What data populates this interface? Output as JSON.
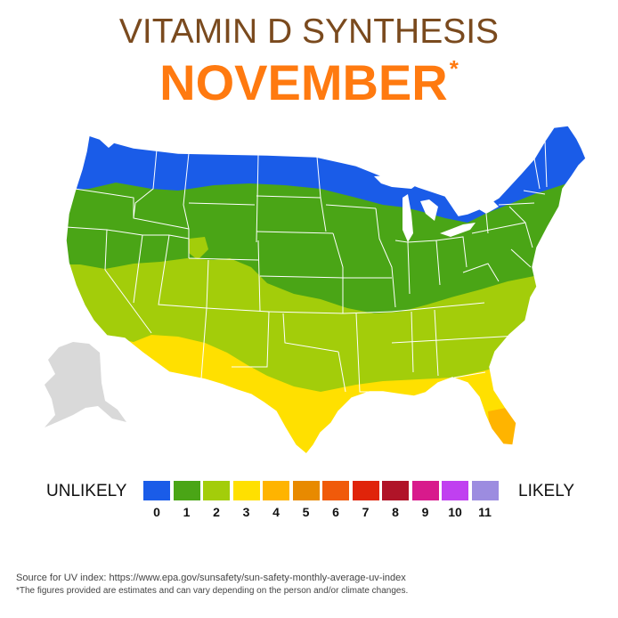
{
  "title": "VITAMIN D SYNTHESIS",
  "subtitle": "NOVEMBER",
  "subtitle_mark": "*",
  "legend": {
    "left_label": "UNLIKELY",
    "right_label": "LIKELY",
    "items": [
      {
        "value": "0",
        "color": "#1a5ce8"
      },
      {
        "value": "1",
        "color": "#4aa516"
      },
      {
        "value": "2",
        "color": "#a3cd0a"
      },
      {
        "value": "3",
        "color": "#ffe000"
      },
      {
        "value": "4",
        "color": "#ffb400"
      },
      {
        "value": "5",
        "color": "#e88a00"
      },
      {
        "value": "6",
        "color": "#f05a0a"
      },
      {
        "value": "7",
        "color": "#e0240a"
      },
      {
        "value": "8",
        "color": "#b01428"
      },
      {
        "value": "9",
        "color": "#d81a8c"
      },
      {
        "value": "10",
        "color": "#c040f0"
      },
      {
        "value": "11",
        "color": "#9c8ce0"
      }
    ]
  },
  "source": "Source for UV index: https://www.epa.gov/sunsafety/sun-safety-monthly-average-uv-index",
  "note": "*The figures provided are estimates and can vary depending on the person and/or climate changes.",
  "map_colors": {
    "alaska": "#d9d9d9",
    "borders": "#ffffff"
  }
}
